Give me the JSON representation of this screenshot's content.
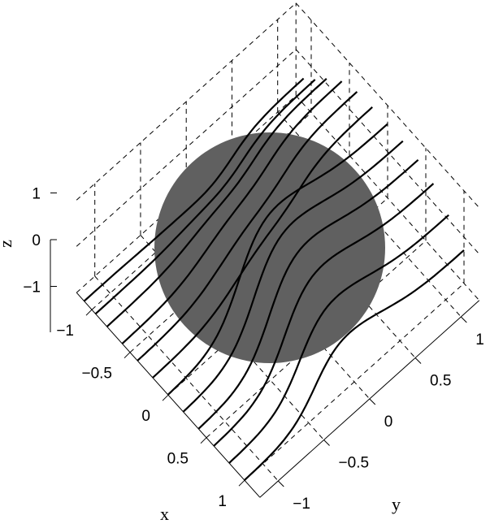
{
  "chart_data": {
    "type": "line",
    "projection": "3d",
    "title": "",
    "xlabel": "x",
    "ylabel": "y",
    "zlabel": "z",
    "xlim": [
      -1.2,
      1.2
    ],
    "ylim": [
      -1.2,
      1.2
    ],
    "zlim": [
      -1,
      1
    ],
    "xticks": [
      -1,
      -0.5,
      0,
      0.5,
      1
    ],
    "xtick_labels": [
      "−1",
      "−0.5",
      "0",
      "0.5",
      "1"
    ],
    "yticks": [
      -1,
      -0.5,
      0,
      0.5,
      1
    ],
    "ytick_labels": [
      "−1",
      "−0.5",
      "0",
      "0.5",
      "1"
    ],
    "zticks": [
      -1,
      0,
      1
    ],
    "ztick_labels": [
      "−1",
      "0",
      "1"
    ],
    "grid": true,
    "sphere": {
      "center": [
        0,
        0,
        0
      ],
      "radius": 1,
      "color": "#606060"
    },
    "streamline_color": "#000000",
    "streamlines": [
      {
        "x": -1.1
      },
      {
        "x": -0.95
      },
      {
        "x": -0.8
      },
      {
        "x": -0.6
      },
      {
        "x": -0.4
      },
      {
        "x": -0.2
      },
      {
        "x": 0.0
      },
      {
        "x": 0.2
      },
      {
        "x": 0.4
      },
      {
        "x": 0.6
      },
      {
        "x": 0.8
      },
      {
        "x": 1.0
      }
    ]
  }
}
